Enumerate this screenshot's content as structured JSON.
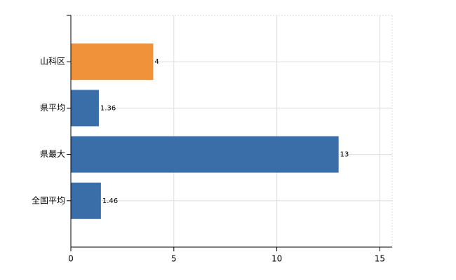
{
  "chart_data": {
    "type": "bar",
    "orientation": "horizontal",
    "categories": [
      "山科区",
      "県平均",
      "県最大",
      "全国平均"
    ],
    "values": [
      4,
      1.36,
      13,
      1.46
    ],
    "colors": [
      "#f0923a",
      "#3a6ea8",
      "#3a6ea8",
      "#3a6ea8"
    ],
    "xlim": [
      0,
      15.6
    ],
    "xticks": [
      0,
      5,
      10,
      15
    ],
    "grid": true
  }
}
